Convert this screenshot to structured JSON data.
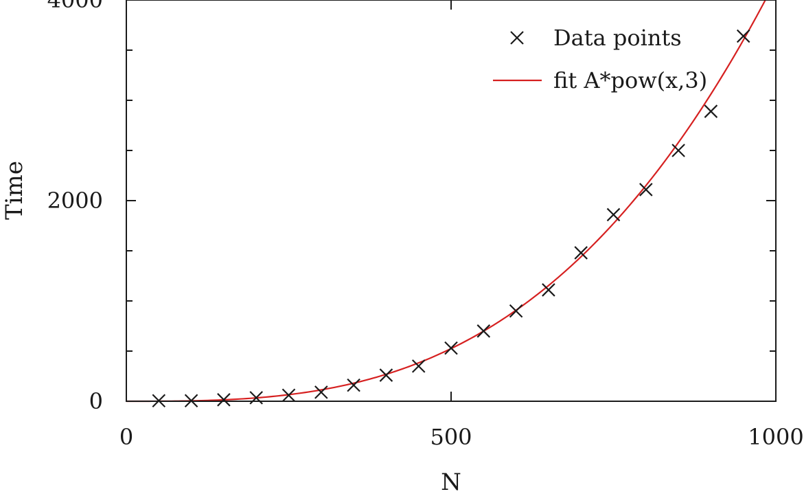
{
  "chart_data": {
    "type": "scatter",
    "title": "",
    "xlabel": "N",
    "ylabel": "Time",
    "xlim": [
      0,
      1000
    ],
    "ylim": [
      0,
      4000
    ],
    "x_ticks": [
      0,
      500,
      1000
    ],
    "x_tick_labels": [
      "0",
      "500",
      "1000"
    ],
    "y_ticks": [
      0,
      2000,
      4000
    ],
    "y_tick_labels": [
      "0",
      "2000",
      "4000"
    ],
    "y_minor_step": 500,
    "grid": false,
    "legend_position": "top-right",
    "series": [
      {
        "name": "Data points",
        "kind": "points",
        "marker": "cross",
        "color": "#1a1a1a",
        "x": [
          50,
          100,
          150,
          200,
          250,
          300,
          350,
          400,
          450,
          500,
          550,
          600,
          650,
          700,
          750,
          800,
          850,
          900,
          950
        ],
        "y": [
          5,
          5,
          15,
          35,
          60,
          90,
          160,
          260,
          350,
          530,
          700,
          900,
          1110,
          1480,
          1860,
          2110,
          2500,
          2890,
          3640
        ]
      },
      {
        "name": "fit A*pow(x,3)",
        "kind": "line",
        "color": "#d62020",
        "formula": "A*pow(x,3)",
        "A": 4.2e-06
      }
    ]
  }
}
